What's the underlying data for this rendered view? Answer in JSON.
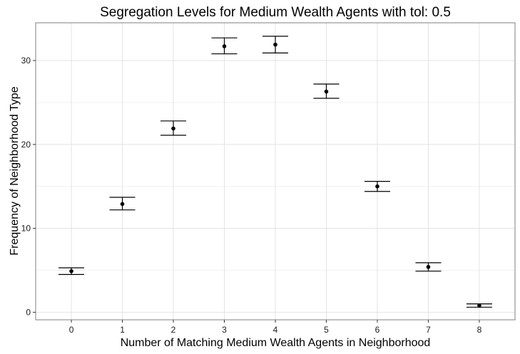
{
  "chart_data": {
    "type": "scatter",
    "title": "Segregation Levels for Medium Wealth Agents with tol: 0.5",
    "xlabel": "Number of Matching Medium  Wealth Agents in Neighborhood",
    "ylabel": "Frequency of Neighborhood Type",
    "x": [
      0,
      1,
      2,
      3,
      4,
      5,
      6,
      7,
      8
    ],
    "y": [
      4.9,
      12.9,
      21.9,
      31.7,
      31.9,
      26.3,
      15.0,
      5.4,
      0.8
    ],
    "ymin": [
      4.5,
      12.2,
      21.1,
      30.8,
      30.9,
      25.5,
      14.4,
      4.9,
      0.6
    ],
    "ymax": [
      5.3,
      13.7,
      22.8,
      32.7,
      32.9,
      27.2,
      15.6,
      5.9,
      1.0
    ],
    "xticks": [
      "0",
      "1",
      "2",
      "3",
      "4",
      "5",
      "6",
      "7",
      "8"
    ],
    "yticks": [
      "0",
      "10",
      "20",
      "30"
    ],
    "xlim": [
      -0.7,
      8.7
    ],
    "ylim": [
      -0.9,
      34.5
    ],
    "grid": true,
    "error_bars": true
  }
}
